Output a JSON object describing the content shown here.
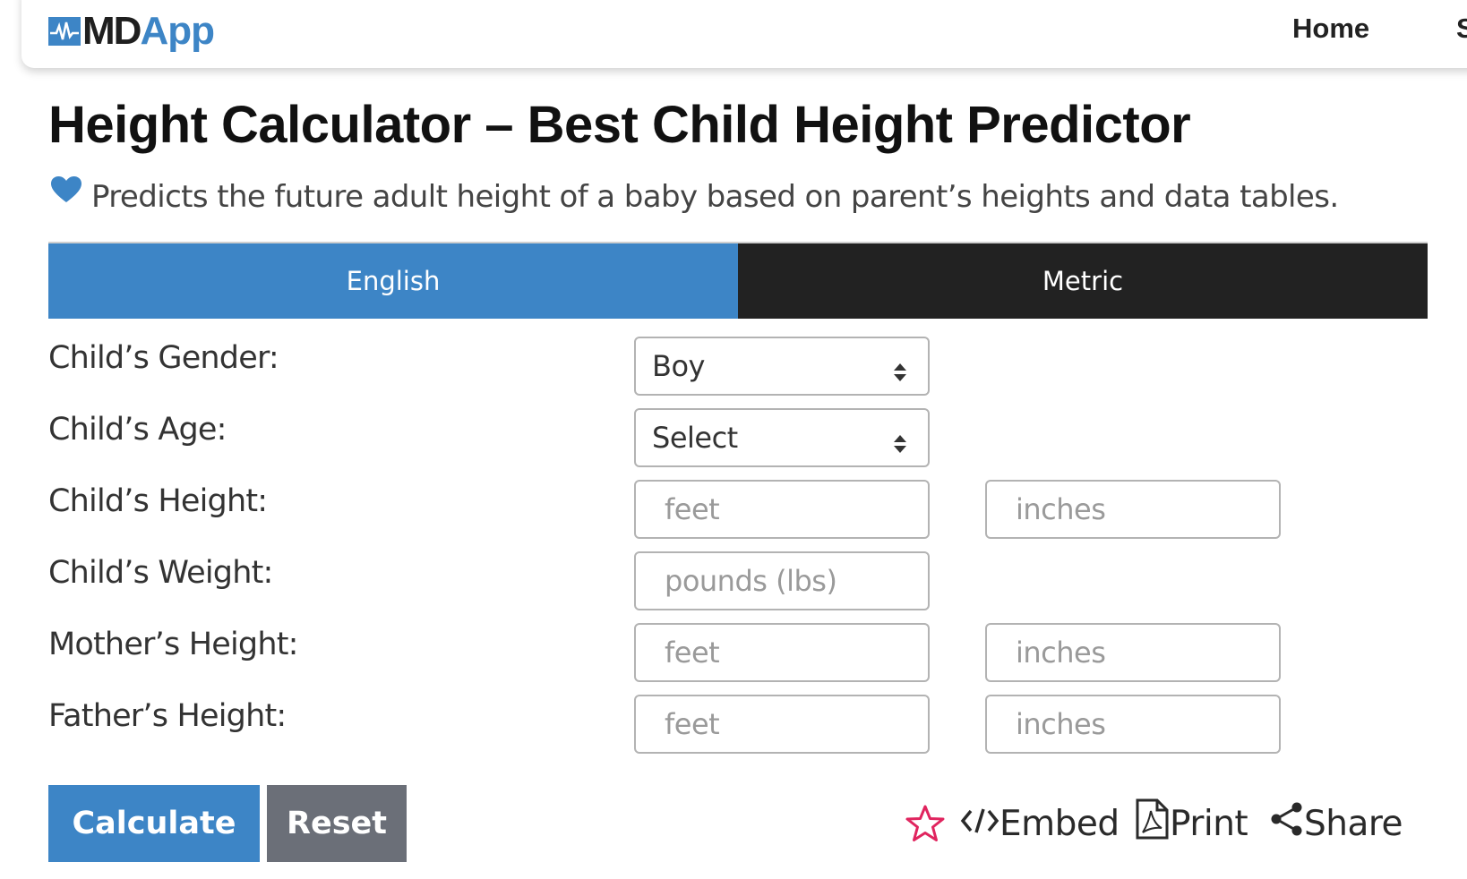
{
  "header": {
    "logo_md": "MD",
    "logo_app": "App",
    "nav_home": "Home",
    "nav_next": "S"
  },
  "page": {
    "title": "Height Calculator – Best Child Height Predictor",
    "subtitle": "Predicts the future adult height of a baby based on parent’s heights and data tables."
  },
  "tabs": [
    {
      "label": "English",
      "active": true
    },
    {
      "label": "Metric",
      "active": false
    }
  ],
  "form": {
    "gender": {
      "label": "Child’s Gender:",
      "value": "Boy"
    },
    "age": {
      "label": "Child’s Age:",
      "value": "Select"
    },
    "child_height": {
      "label": "Child’s Height:",
      "feet_placeholder": "feet",
      "inches_placeholder": "inches"
    },
    "child_weight": {
      "label": "Child’s Weight:",
      "placeholder": "pounds (lbs)"
    },
    "mother_height": {
      "label": "Mother’s Height:",
      "feet_placeholder": "feet",
      "inches_placeholder": "inches"
    },
    "father_height": {
      "label": "Father’s Height:",
      "feet_placeholder": "feet",
      "inches_placeholder": "inches"
    }
  },
  "buttons": {
    "calculate": "Calculate",
    "reset": "Reset"
  },
  "actions": {
    "embed": "Embed",
    "print": "Print",
    "share": "Share"
  },
  "colors": {
    "brand_blue": "#3d85c6",
    "tab_inactive": "#222222",
    "reset_gray": "#6b6f78",
    "favorite_pink": "#e0245e"
  },
  "icons": [
    "heart-icon",
    "select-arrows-icon",
    "star-icon",
    "embed-code-icon",
    "pdf-icon",
    "share-icon"
  ]
}
